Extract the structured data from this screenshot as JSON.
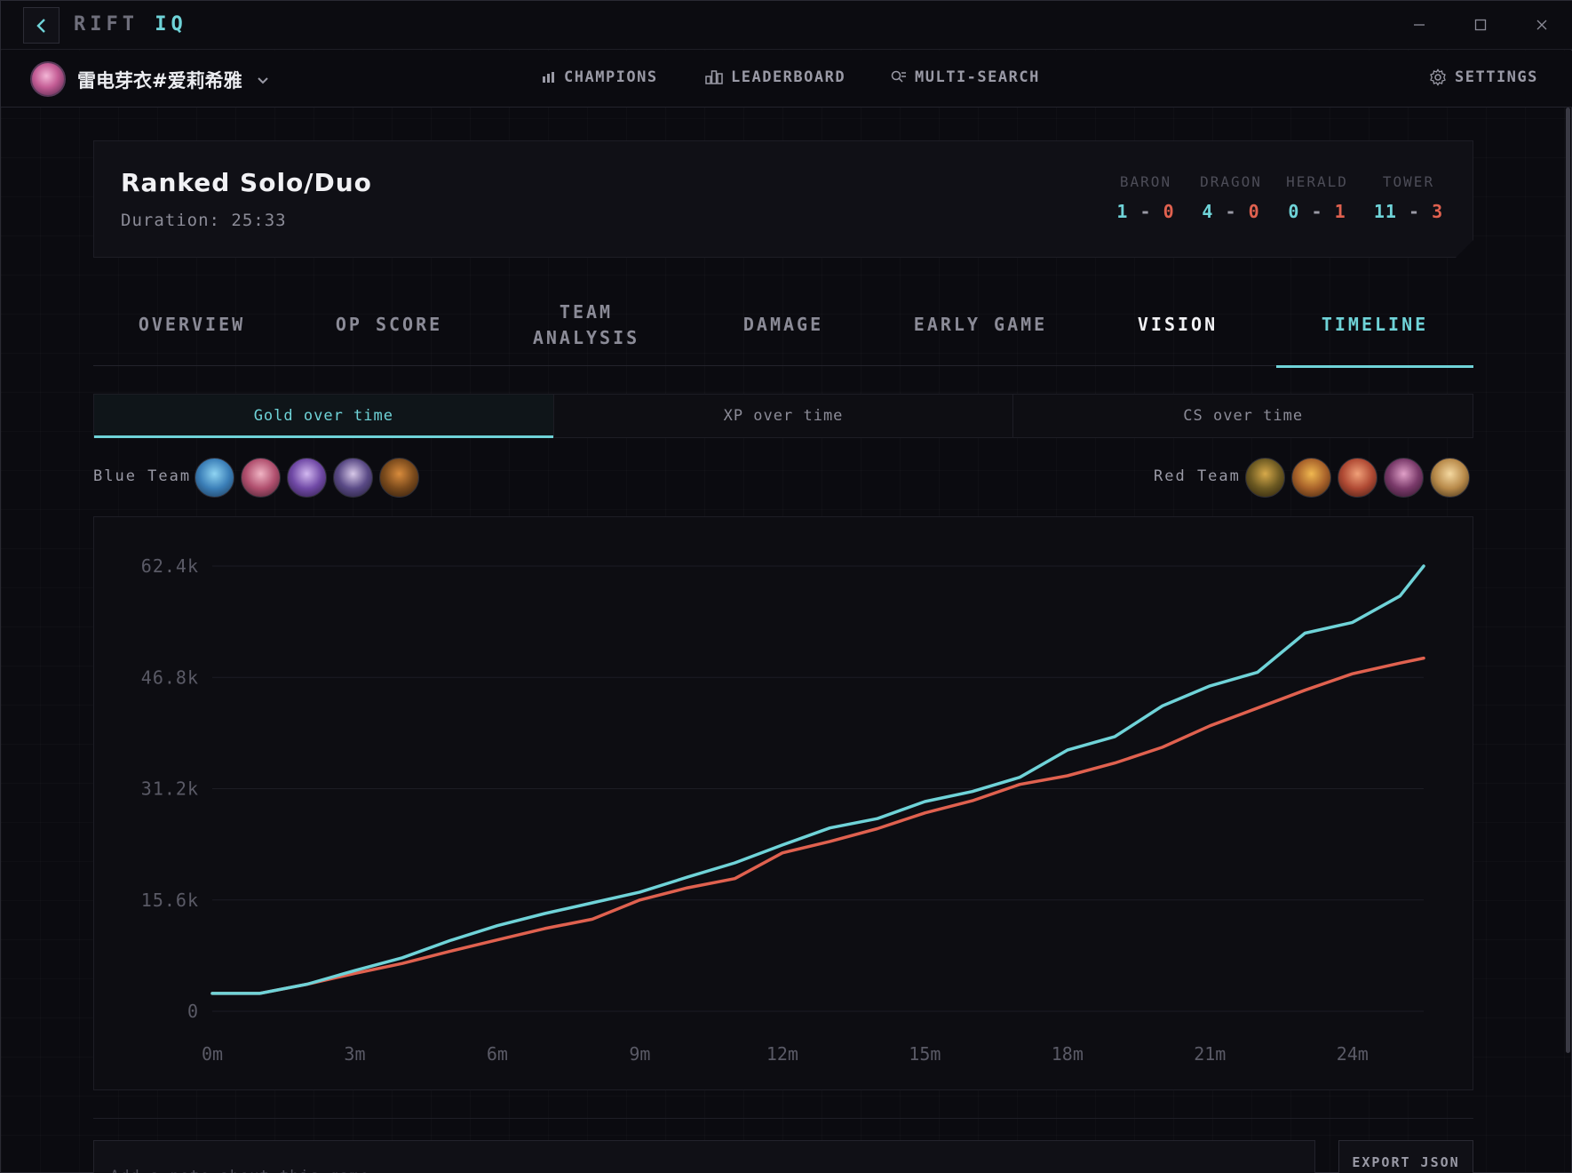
{
  "app": {
    "logo_main": "RIFT ",
    "logo_accent": "IQ"
  },
  "user": {
    "name": "雷电芽衣#爱莉希雅"
  },
  "nav": [
    {
      "label": "CHAMPIONS",
      "icon": "bar-chart-icon"
    },
    {
      "label": "LEADERBOARD",
      "icon": "leaderboard-icon"
    },
    {
      "label": "MULTI-SEARCH",
      "icon": "multi-search-icon"
    }
  ],
  "settings_label": "SETTINGS",
  "match": {
    "queue": "Ranked Solo/Duo",
    "duration": "Duration: 25:33",
    "objectives": [
      {
        "label": "BARON",
        "blue": "1",
        "red": "0"
      },
      {
        "label": "DRAGON",
        "blue": "4",
        "red": "0"
      },
      {
        "label": "HERALD",
        "blue": "0",
        "red": "1"
      },
      {
        "label": "TOWER",
        "blue": "11",
        "red": "3"
      }
    ]
  },
  "tabs": [
    {
      "label": "OVERVIEW"
    },
    {
      "label": "OP SCORE"
    },
    {
      "label": "TEAM\nANALYSIS"
    },
    {
      "label": "DAMAGE"
    },
    {
      "label": "EARLY GAME"
    },
    {
      "label": "VISION"
    },
    {
      "label": "TIMELINE"
    }
  ],
  "active_tab": "TIMELINE",
  "subtabs": [
    {
      "label": "Gold over time"
    },
    {
      "label": "XP over time"
    },
    {
      "label": "CS over time"
    }
  ],
  "active_subtab": "Gold over time",
  "teams": {
    "blue_label": "Blue Team",
    "red_label": "Red Team"
  },
  "note": {
    "placeholder": "Add a note about this game..."
  },
  "export_label": "EXPORT JSON",
  "colors": {
    "blue": "#6fd3d8",
    "red": "#e0614f",
    "bg": "#0b0b10"
  },
  "chart_data": {
    "type": "line",
    "title": "",
    "xlabel": "",
    "ylabel": "",
    "x_unit": "minutes",
    "x_ticks": [
      "0m",
      "3m",
      "6m",
      "9m",
      "12m",
      "15m",
      "18m",
      "21m",
      "24m"
    ],
    "y_ticks": [
      "0",
      "15.6k",
      "31.2k",
      "46.8k",
      "62.4k"
    ],
    "ylim": [
      0,
      62400
    ],
    "xlim": [
      0,
      25.5
    ],
    "x": [
      0,
      1,
      2,
      3,
      4,
      5,
      6,
      7,
      8,
      9,
      10,
      11,
      12,
      13,
      14,
      15,
      16,
      17,
      18,
      19,
      20,
      21,
      22,
      23,
      24,
      25,
      25.5
    ],
    "series": [
      {
        "values": [
          2500,
          2500,
          3800,
          5700,
          7500,
          9900,
          12000,
          13700,
          15200,
          16700,
          18800,
          20800,
          23300,
          25700,
          27000,
          29400,
          30800,
          32800,
          36600,
          38500,
          42800,
          45600,
          47500,
          53000,
          54500,
          58200,
          62400
        ]
      },
      {
        "values": [
          2500,
          2500,
          3800,
          5300,
          6700,
          8400,
          10000,
          11600,
          12900,
          15600,
          17300,
          18600,
          22200,
          23800,
          25600,
          27800,
          29500,
          31800,
          33000,
          34800,
          37000,
          40000,
          42500,
          45000,
          47300,
          48800,
          49500
        ]
      }
    ],
    "grid": true,
    "legend": "none"
  }
}
